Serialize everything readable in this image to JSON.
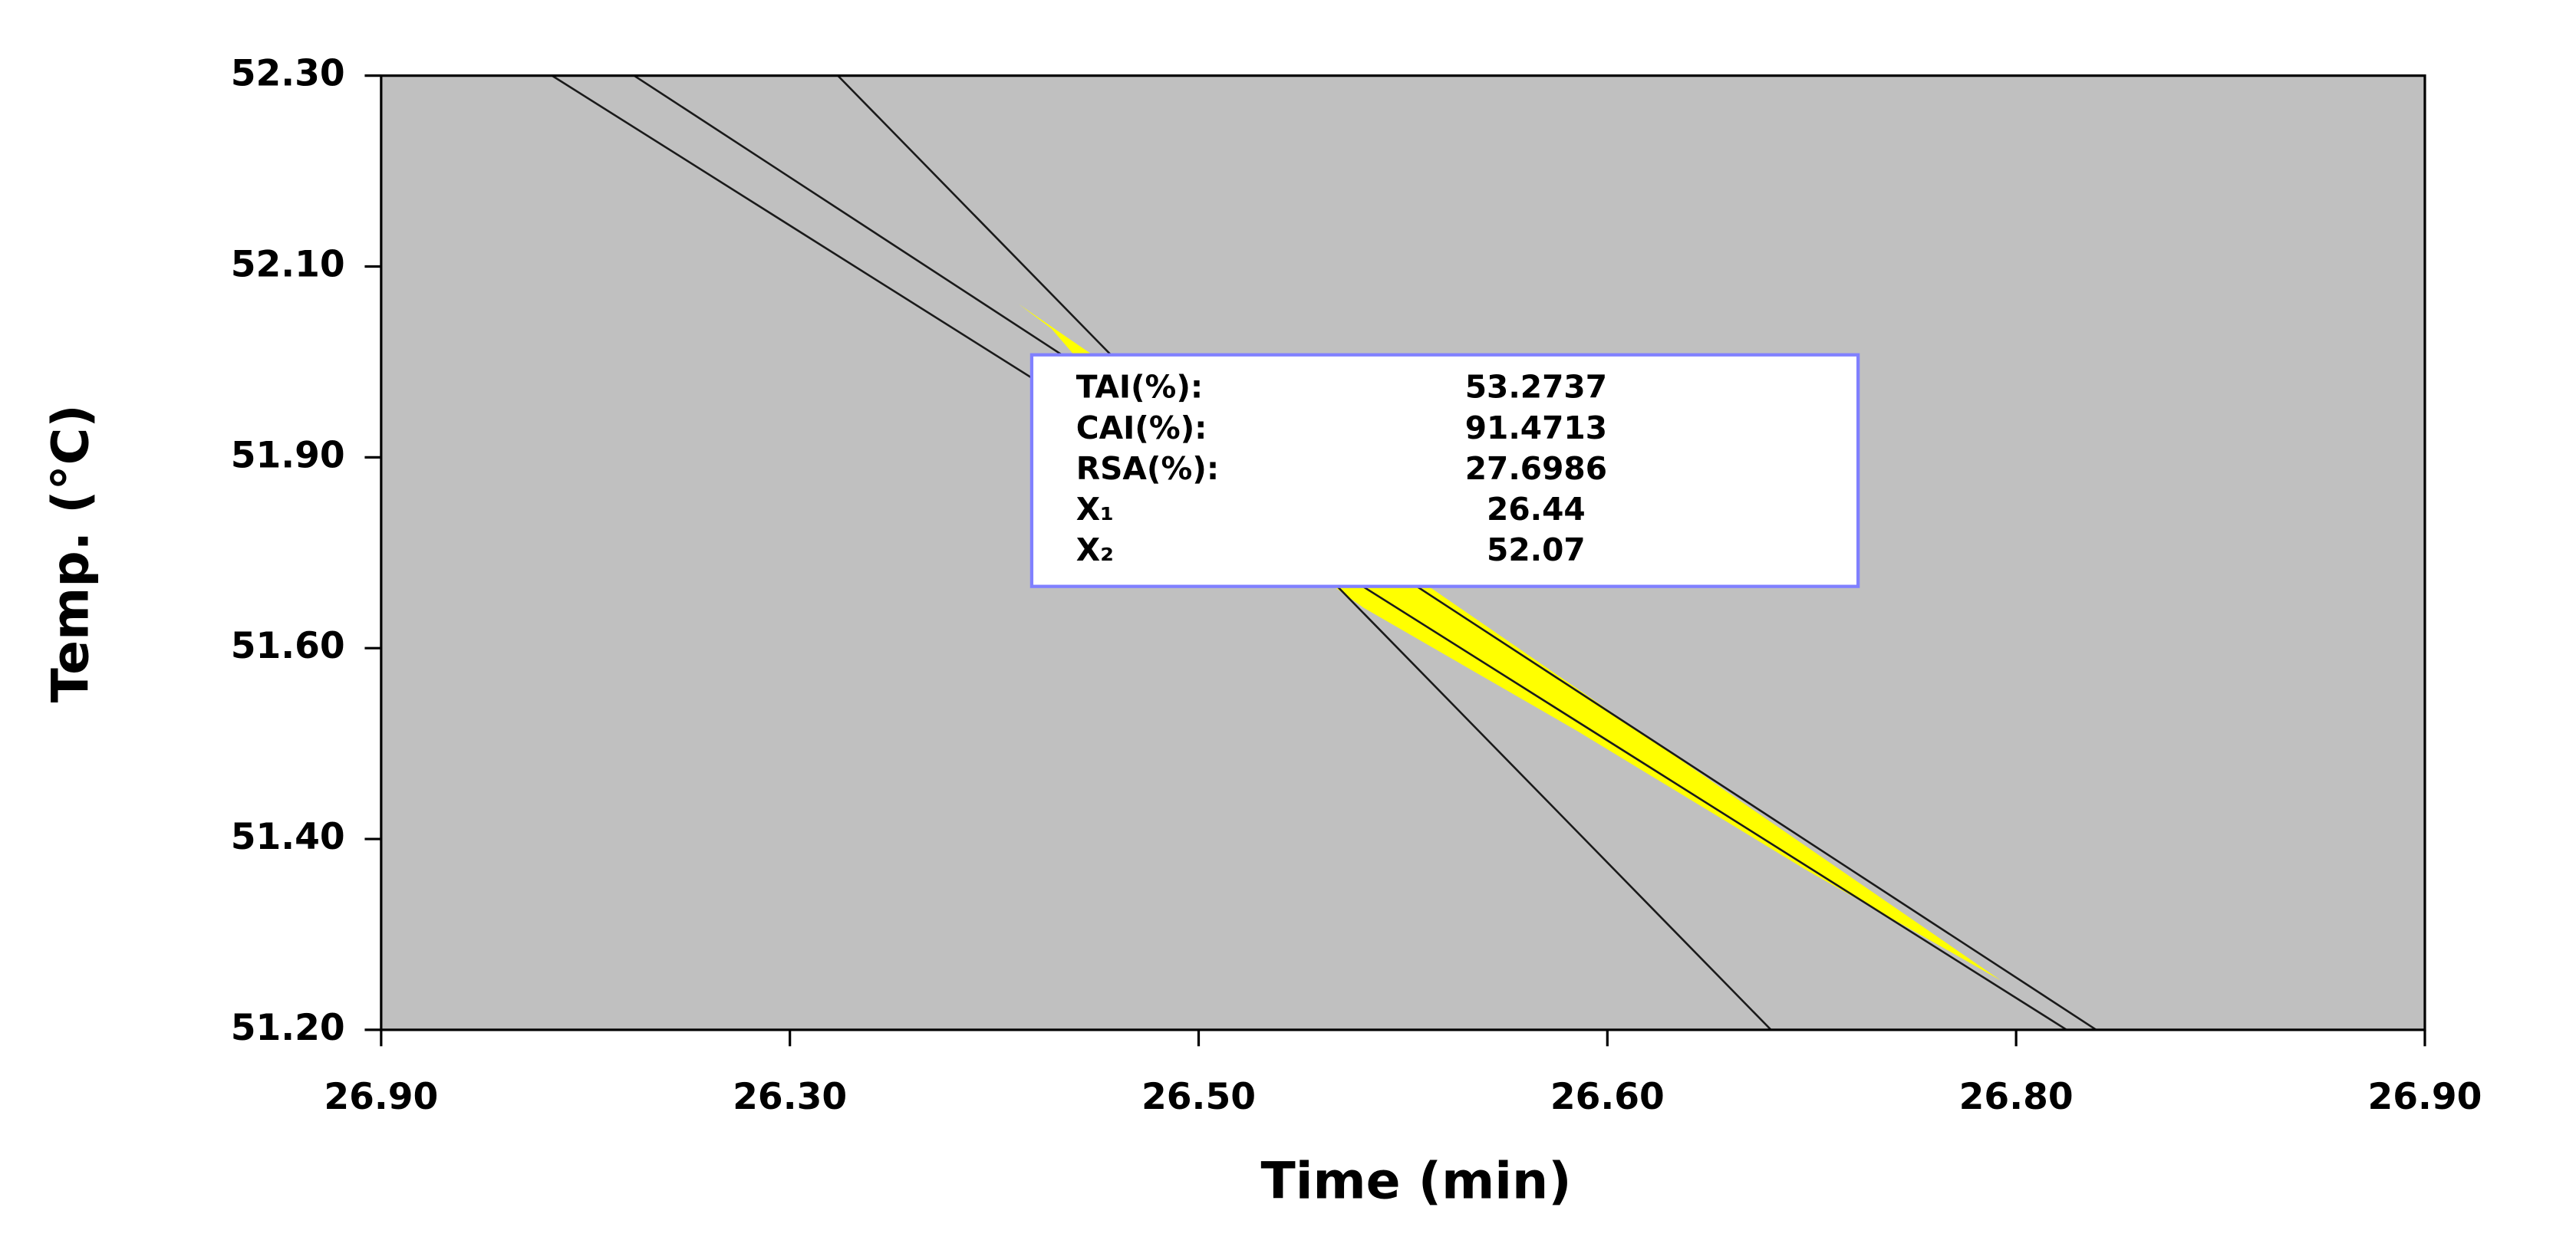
{
  "chart_data": {
    "type": "overlay",
    "x_label": "Time (min)",
    "y_label": "Temp. (°C)",
    "xtick_labels": [
      "26.90",
      "26.30",
      "26.50",
      "26.60",
      "26.80",
      "26.90"
    ],
    "ytick_labels": [
      "52.30",
      "52.10",
      "51.90",
      "51.60",
      "51.40",
      "51.20"
    ],
    "region_color": "#ffff00",
    "background_color": "#c0c0c0",
    "annotation": {
      "rows": [
        [
          "TAI(%):",
          53.2737
        ],
        [
          "CAI(%):",
          91.4713
        ],
        [
          "RSA(%):",
          27.6986
        ],
        [
          "X₁",
          26.44
        ],
        [
          "X₂",
          52.07
        ]
      ]
    }
  }
}
